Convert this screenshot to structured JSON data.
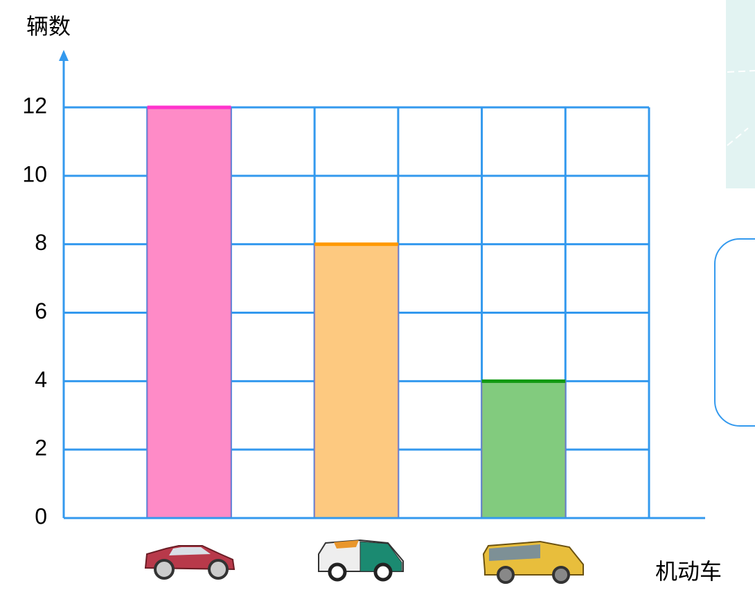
{
  "chart_data": {
    "type": "bar",
    "y_label": "辆数",
    "x_label": "机动车",
    "categories": [
      null,
      null,
      null
    ],
    "values": [
      12,
      8,
      4
    ],
    "colors": [
      "#fe8bc7",
      "#fdc980",
      "#82cb7e"
    ],
    "top_colors": [
      "#ff33cc",
      "#ff9900",
      "#119911"
    ],
    "ylim": [
      0,
      12
    ],
    "yticks": [
      0,
      2,
      4,
      6,
      8,
      10,
      12
    ],
    "grid": true,
    "grid_color": "#3399ee"
  }
}
